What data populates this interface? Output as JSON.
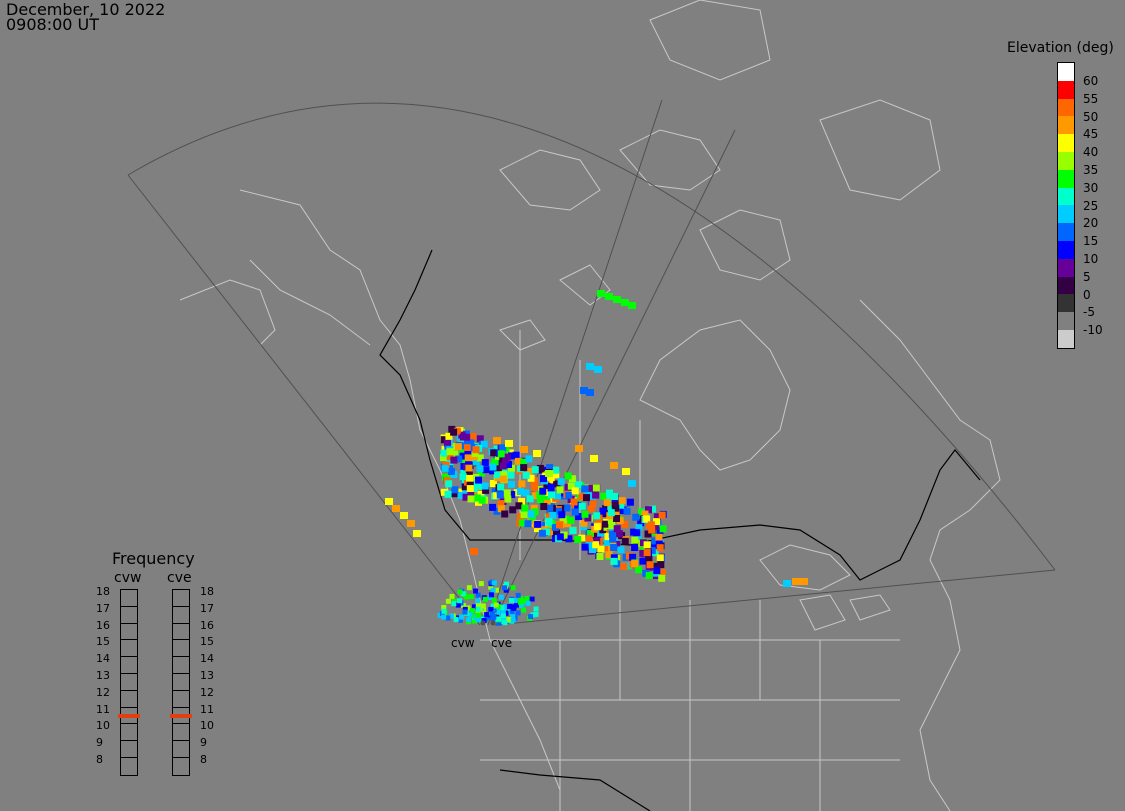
{
  "header": {
    "date": "December, 10 2022",
    "time": "0908:00 UT"
  },
  "legend": {
    "title": "Elevation (deg)",
    "ticks": [
      "60",
      "55",
      "50",
      "45",
      "40",
      "35",
      "30",
      "25",
      "20",
      "15",
      "10",
      "5",
      "0",
      "-5",
      "-10"
    ],
    "colors": [
      "#ffffff",
      "#ff0000",
      "#ff6600",
      "#ff9900",
      "#ffff00",
      "#99ff00",
      "#00ff00",
      "#00ffcc",
      "#00ccff",
      "#0066ff",
      "#0000ff",
      "#660099",
      "#330044",
      "#333333",
      "#808080",
      "#cccccc"
    ]
  },
  "frequency": {
    "title": "Frequency",
    "radars": [
      {
        "name": "cvw",
        "levels": [
          "18",
          "17",
          "16",
          "15",
          "14",
          "13",
          "12",
          "11",
          "10",
          "9",
          "8"
        ],
        "active": "11"
      },
      {
        "name": "cve",
        "levels": [
          "18",
          "17",
          "16",
          "15",
          "14",
          "13",
          "12",
          "11",
          "10",
          "9",
          "8"
        ],
        "active": "11"
      }
    ]
  },
  "sites": [
    {
      "name": "cvw"
    },
    {
      "name": "cve"
    }
  ],
  "colors": {
    "background": "#808080",
    "coastline": "#c8c8c8",
    "border": "#000000",
    "fov": "#505050",
    "active_freq": "#e04010"
  }
}
